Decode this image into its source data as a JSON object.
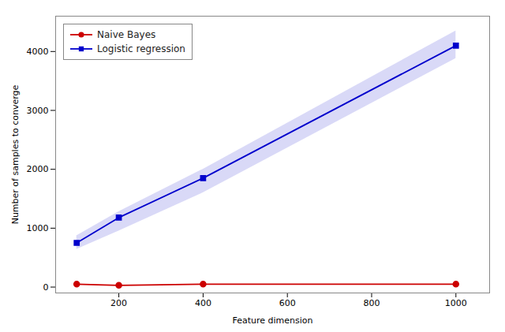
{
  "chart_data": {
    "type": "line",
    "xlabel": "Feature dimension",
    "ylabel": "Number of samples to converge",
    "x": [
      100,
      200,
      400,
      1000
    ],
    "series": [
      {
        "name": "Naive Bayes",
        "color": "#cc0000",
        "marker": "circle",
        "values": [
          50,
          30,
          50,
          50
        ]
      },
      {
        "name": "Logistic regression",
        "color": "#0000cc",
        "marker": "square",
        "values": [
          750,
          1180,
          1850,
          4100
        ],
        "band": {
          "lower": [
            640,
            950,
            1600,
            3880
          ],
          "upper": [
            870,
            1280,
            2000,
            4350
          ],
          "color": "#aaaaee"
        }
      }
    ],
    "xlim": [
      50,
      1080
    ],
    "ylim": [
      -100,
      4600
    ],
    "xticks": [
      200,
      400,
      600,
      800,
      1000
    ],
    "yticks": [
      0,
      1000,
      2000,
      3000,
      4000
    ],
    "legend": "upper left",
    "grid": false
  }
}
